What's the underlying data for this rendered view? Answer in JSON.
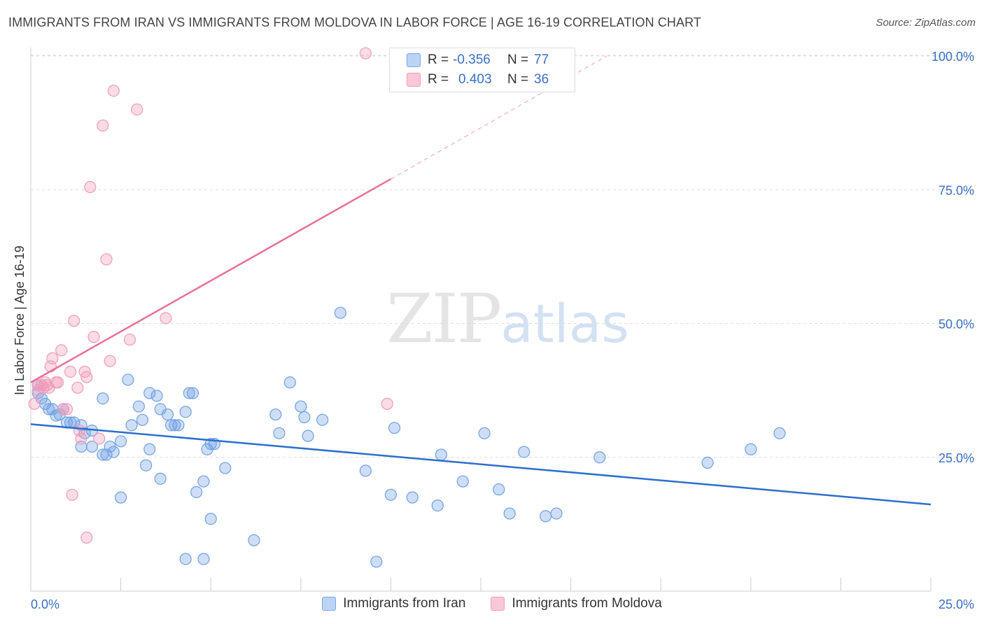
{
  "title": "IMMIGRANTS FROM IRAN VS IMMIGRANTS FROM MOLDOVA IN LABOR FORCE | AGE 16-19 CORRELATION CHART",
  "source": "Source: ZipAtlas.com",
  "watermark": {
    "zip": "ZIP",
    "atlas": "atlas"
  },
  "colors": {
    "iran": "#6fa0e4",
    "iran_line": "#2b6fcc",
    "moldova": "#f09ab8",
    "moldova_line": "#e8709a",
    "tick": "#3a6fc4"
  },
  "legend_top": {
    "iran": {
      "r_label": "R =",
      "r_value": "-0.356",
      "n_label": "N =",
      "n_value": "77"
    },
    "moldova": {
      "r_label": "R =",
      "r_value": "0.403",
      "n_label": "N =",
      "n_value": "36"
    }
  },
  "legend_bottom": {
    "iran": "Immigrants from Iran",
    "moldova": "Immigrants from Moldova"
  },
  "chart_data": {
    "type": "scatter",
    "title": "IMMIGRANTS FROM IRAN VS IMMIGRANTS FROM MOLDOVA IN LABOR FORCE | AGE 16-19 CORRELATION CHART",
    "xlabel": "",
    "ylabel": "In Labor Force | Age 16-19",
    "xlim": [
      0,
      25
    ],
    "ylim": [
      0,
      102
    ],
    "x_tick_labels": [
      "0.0%",
      "25.0%"
    ],
    "y_ticks": [
      25,
      50,
      75,
      100
    ],
    "y_tick_labels": [
      "25.0%",
      "50.0%",
      "75.0%",
      "100.0%"
    ],
    "series": [
      {
        "name": "Immigrants from Iran",
        "r": -0.356,
        "n": 77,
        "trend": {
          "x": [
            0,
            25
          ],
          "y": [
            31.2,
            16.2
          ]
        },
        "points": [
          [
            0.2,
            38.5
          ],
          [
            0.2,
            37.0
          ],
          [
            0.3,
            36.0
          ],
          [
            0.4,
            35.0
          ],
          [
            0.5,
            34.0
          ],
          [
            0.6,
            34.0
          ],
          [
            0.7,
            32.8
          ],
          [
            0.8,
            33.0
          ],
          [
            0.9,
            34.0
          ],
          [
            1.0,
            31.5
          ],
          [
            1.1,
            31.5
          ],
          [
            1.2,
            31.5
          ],
          [
            1.4,
            31.0
          ],
          [
            1.5,
            29.5
          ],
          [
            1.7,
            30.0
          ],
          [
            1.4,
            27.0
          ],
          [
            1.7,
            27.0
          ],
          [
            2.0,
            25.5
          ],
          [
            2.1,
            25.5
          ],
          [
            2.2,
            27.0
          ],
          [
            2.3,
            26.0
          ],
          [
            2.5,
            28.0
          ],
          [
            2.0,
            36.0
          ],
          [
            2.7,
            39.5
          ],
          [
            2.8,
            31.0
          ],
          [
            3.0,
            34.5
          ],
          [
            3.1,
            32.0
          ],
          [
            3.2,
            23.5
          ],
          [
            3.3,
            26.5
          ],
          [
            2.5,
            17.5
          ],
          [
            3.3,
            37.0
          ],
          [
            3.5,
            36.5
          ],
          [
            3.6,
            34.0
          ],
          [
            3.8,
            33.0
          ],
          [
            3.9,
            31.0
          ],
          [
            4.0,
            31.0
          ],
          [
            4.1,
            31.0
          ],
          [
            4.3,
            33.5
          ],
          [
            4.4,
            37.0
          ],
          [
            4.5,
            37.0
          ],
          [
            3.6,
            21.0
          ],
          [
            4.6,
            18.5
          ],
          [
            4.8,
            20.5
          ],
          [
            4.9,
            26.5
          ],
          [
            5.0,
            27.5
          ],
          [
            5.1,
            27.5
          ],
          [
            5.4,
            23.0
          ],
          [
            5.0,
            13.5
          ],
          [
            4.3,
            6.0
          ],
          [
            4.8,
            6.0
          ],
          [
            6.2,
            9.5
          ],
          [
            6.8,
            33.0
          ],
          [
            6.9,
            29.5
          ],
          [
            7.2,
            39.0
          ],
          [
            7.5,
            34.5
          ],
          [
            7.6,
            32.5
          ],
          [
            7.7,
            29.0
          ],
          [
            8.1,
            32.0
          ],
          [
            8.6,
            52.0
          ],
          [
            9.3,
            22.5
          ],
          [
            10.0,
            18.0
          ],
          [
            10.1,
            30.5
          ],
          [
            10.6,
            17.5
          ],
          [
            11.3,
            16.0
          ],
          [
            11.4,
            25.5
          ],
          [
            12.0,
            20.5
          ],
          [
            12.6,
            29.5
          ],
          [
            13.0,
            19.0
          ],
          [
            13.3,
            14.5
          ],
          [
            13.7,
            26.0
          ],
          [
            14.3,
            14.0
          ],
          [
            14.6,
            14.5
          ],
          [
            15.8,
            25.0
          ],
          [
            18.8,
            24.0
          ],
          [
            20.0,
            26.5
          ],
          [
            20.8,
            29.5
          ],
          [
            9.6,
            5.5
          ]
        ]
      },
      {
        "name": "Immigrants from Moldova",
        "r": 0.403,
        "n": 36,
        "trend": {
          "x": [
            0,
            10.0
          ],
          "y": [
            39.0,
            77.0
          ]
        },
        "trend_extension": {
          "x": [
            10.0,
            16.0
          ],
          "y": [
            77.0,
            100.0
          ]
        },
        "points": [
          [
            0.1,
            35.0
          ],
          [
            0.2,
            37.5
          ],
          [
            0.2,
            38.5
          ],
          [
            0.3,
            38.5
          ],
          [
            0.35,
            38.0
          ],
          [
            0.4,
            39.0
          ],
          [
            0.45,
            38.5
          ],
          [
            0.5,
            38.0
          ],
          [
            0.55,
            42.0
          ],
          [
            0.6,
            43.5
          ],
          [
            0.7,
            39.0
          ],
          [
            0.75,
            39.0
          ],
          [
            0.85,
            45.0
          ],
          [
            0.9,
            34.0
          ],
          [
            1.0,
            34.0
          ],
          [
            1.1,
            41.0
          ],
          [
            1.15,
            18.0
          ],
          [
            1.2,
            50.5
          ],
          [
            1.3,
            38.0
          ],
          [
            1.35,
            30.0
          ],
          [
            1.4,
            28.5
          ],
          [
            1.5,
            41.0
          ],
          [
            1.55,
            40.0
          ],
          [
            1.55,
            10.0
          ],
          [
            1.65,
            75.5
          ],
          [
            1.75,
            47.5
          ],
          [
            1.9,
            28.5
          ],
          [
            2.0,
            87.0
          ],
          [
            2.1,
            62.0
          ],
          [
            2.2,
            43.0
          ],
          [
            2.3,
            93.5
          ],
          [
            2.75,
            47.0
          ],
          [
            2.95,
            90.0
          ],
          [
            3.75,
            51.0
          ],
          [
            9.3,
            100.5
          ],
          [
            9.9,
            35.0
          ]
        ]
      }
    ]
  }
}
